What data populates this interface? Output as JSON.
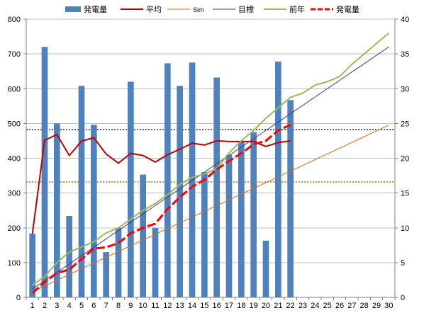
{
  "chart_data": {
    "type": "bar",
    "title": "",
    "xlabel": "",
    "ylabel": "",
    "grid": "horizontal",
    "legend_position": "top",
    "x_categories": [
      "1",
      "2",
      "3",
      "4",
      "5",
      "6",
      "7",
      "8",
      "9",
      "10",
      "11",
      "12",
      "13",
      "14",
      "15",
      "16",
      "17",
      "18",
      "19",
      "20",
      "21",
      "22",
      "23",
      "24",
      "25",
      "26",
      "27",
      "28",
      "29",
      "30"
    ],
    "y_left": {
      "min": 0,
      "max": 800,
      "ticks": [
        "0",
        "100",
        "200",
        "300",
        "400",
        "500",
        "600",
        "700",
        "800"
      ]
    },
    "y_right": {
      "min": 0,
      "max": 40,
      "ticks": [
        "0",
        "5",
        "10",
        "15",
        "20",
        "25",
        "30",
        "35",
        "40"
      ]
    },
    "reference_lines": [
      {
        "axis": "left",
        "value": 482,
        "color": "#1f2a6b",
        "style": "dotted"
      },
      {
        "axis": "left",
        "value": 332,
        "color": "#e46c0a",
        "style": "dotted"
      }
    ],
    "series": [
      {
        "name": "発電量",
        "type": "bar",
        "axis": "left",
        "color": "#4f81bd",
        "values": [
          183,
          720,
          500,
          234,
          608,
          496,
          130,
          200,
          620,
          353,
          200,
          673,
          608,
          675,
          360,
          632,
          410,
          450,
          475,
          163,
          678,
          567
        ]
      },
      {
        "name": "平均",
        "type": "line",
        "axis": "left",
        "color": "#c00000",
        "values": [
          183,
          452,
          468,
          408,
          449,
          459,
          412,
          386,
          414,
          408,
          389,
          410,
          426,
          443,
          438,
          450,
          448,
          448,
          448,
          434,
          445,
          450
        ]
      },
      {
        "name": "Sim",
        "type": "line",
        "axis": "left",
        "color": "#e46c0a",
        "points": [
          [
            1,
            16
          ],
          [
            30,
            495
          ]
        ]
      },
      {
        "name": "目標",
        "type": "line",
        "axis": "left",
        "color": "#403d8a",
        "points": [
          [
            1,
            24
          ],
          [
            30,
            720
          ]
        ]
      },
      {
        "name": "前年",
        "type": "line",
        "axis": "left",
        "color": "#9bbb59",
        "values": [
          35,
          60,
          100,
          130,
          145,
          160,
          185,
          200,
          225,
          250,
          270,
          295,
          325,
          345,
          355,
          370,
          415,
          450,
          480,
          515,
          545,
          575,
          587,
          610,
          620,
          635,
          670,
          700,
          730,
          760
        ]
      },
      {
        "name": "発電量",
        "type": "line",
        "axis": "right",
        "color": "#ff0000",
        "style": "dashed-thick",
        "values": [
          0.6,
          2.2,
          3.5,
          4.0,
          5.5,
          7.0,
          7.2,
          7.8,
          9.2,
          10.0,
          10.6,
          12.7,
          14.4,
          15.9,
          16.9,
          18.4,
          19.6,
          20.7,
          22.0,
          22.5,
          24.0,
          24.8
        ]
      }
    ]
  }
}
